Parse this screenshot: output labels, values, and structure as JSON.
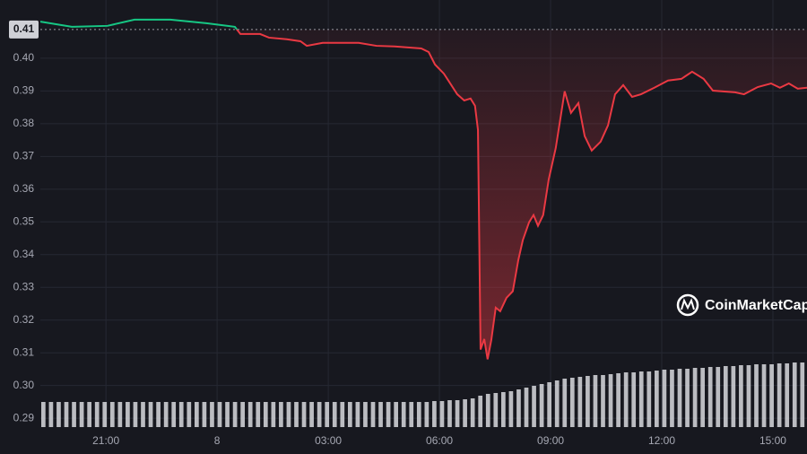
{
  "chart_data": {
    "type": "line",
    "x": [
      19.23,
      20.08,
      21.04,
      21.77,
      22.74,
      23.71,
      24.48,
      24.63,
      25.16,
      25.4,
      25.88,
      26.25,
      26.42,
      26.85,
      27.82,
      28.3,
      28.79,
      29.51,
      29.71,
      29.88,
      30.12,
      30.24,
      30.48,
      30.67,
      30.84,
      30.96,
      31.04,
      31.11,
      31.21,
      31.3,
      31.4,
      31.52,
      31.64,
      31.81,
      31.98,
      32.13,
      32.25,
      32.42,
      32.54,
      32.66,
      32.8,
      32.95,
      33.14,
      33.38,
      33.55,
      33.75,
      33.92,
      34.11,
      34.35,
      34.55,
      34.74,
      34.96,
      35.2,
      35.44,
      35.8,
      36.17,
      36.53,
      36.82,
      37.13,
      37.38,
      37.98,
      38.22,
      38.59,
      38.95,
      39.19,
      39.43,
      39.67,
      39.92
    ],
    "series": [
      {
        "values": [
          0.4112,
          0.4096,
          0.4099,
          0.4118,
          0.4118,
          0.4107,
          0.4096,
          0.4074,
          0.4074,
          0.4063,
          0.4058,
          0.4052,
          0.4038,
          0.4047,
          0.4047,
          0.4038,
          0.4036,
          0.403,
          0.4019,
          0.3981,
          0.3953,
          0.3932,
          0.389,
          0.3871,
          0.3877,
          0.3855,
          0.3781,
          0.311,
          0.3142,
          0.308,
          0.3139,
          0.3238,
          0.3227,
          0.3268,
          0.3288,
          0.3384,
          0.3444,
          0.3499,
          0.3521,
          0.3488,
          0.3521,
          0.363,
          0.3726,
          0.3899,
          0.3833,
          0.3863,
          0.3762,
          0.3718,
          0.3745,
          0.3795,
          0.389,
          0.3918,
          0.3882,
          0.389,
          0.391,
          0.3932,
          0.3937,
          0.3959,
          0.3937,
          0.3901,
          0.3896,
          0.389,
          0.3912,
          0.3923,
          0.391,
          0.3923,
          0.3907,
          0.391
        ],
        "up_color": "#16c784",
        "down_color": "#ea3943"
      }
    ],
    "baseline": 0.4088,
    "baseline_label": "0.41",
    "volume": {
      "color": "#d8d9de",
      "values": [
        28,
        28,
        28,
        28,
        28,
        28,
        28,
        28,
        28,
        28,
        28,
        28,
        28,
        28,
        28,
        28,
        28,
        28,
        28,
        28,
        28,
        28,
        28,
        28,
        28,
        28,
        28,
        28,
        28,
        28,
        28,
        28,
        28,
        28,
        28,
        28,
        28,
        28,
        28,
        28,
        28,
        28,
        28,
        28,
        28,
        28,
        28,
        28,
        28,
        28,
        28,
        29,
        29,
        30,
        30,
        31,
        32,
        35,
        37,
        38,
        39,
        40,
        42,
        44,
        46,
        48,
        50,
        52,
        54,
        55,
        56,
        57,
        58,
        58,
        59,
        60,
        61,
        61,
        62,
        62,
        63,
        64,
        64,
        65,
        65,
        66,
        66,
        67,
        67,
        68,
        68,
        69,
        69,
        70,
        70,
        70,
        71,
        71,
        72,
        72
      ]
    },
    "xlim": [
      19.23,
      39.92
    ],
    "xticks": [
      {
        "value": 21,
        "label": "21:00"
      },
      {
        "value": 24,
        "label": "8"
      },
      {
        "value": 27,
        "label": "03:00"
      },
      {
        "value": 30,
        "label": "06:00"
      },
      {
        "value": 33,
        "label": "09:00"
      },
      {
        "value": 36,
        "label": "12:00"
      },
      {
        "value": 39,
        "label": "15:00"
      }
    ],
    "ylim": [
      0.2873,
      0.4178
    ],
    "yticks": [
      0.29,
      {
        "value": 0.3,
        "label": "0.30"
      },
      0.31,
      0.32,
      0.33,
      0.34,
      0.35,
      0.36,
      0.37,
      0.38,
      0.39,
      {
        "value": 0.4,
        "label": "0.40"
      }
    ],
    "grid": true,
    "watermark": "CoinMarketCap"
  }
}
